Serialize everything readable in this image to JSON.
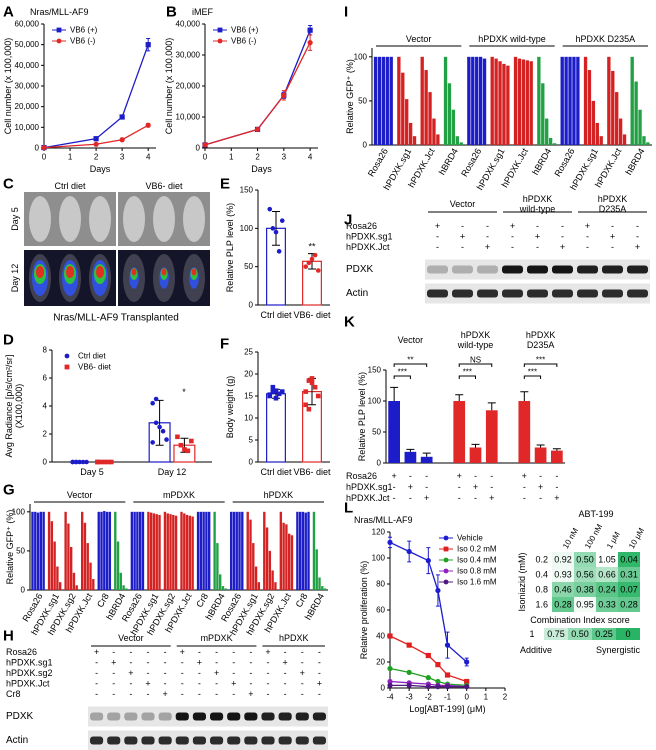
{
  "chart_data": [
    {
      "panel": "A",
      "type": "line",
      "title": "Nras/MLL-AF9",
      "xlabel": "Days",
      "ylabel": "Cell number (x 100,000)",
      "x": [
        0,
        2,
        3,
        4
      ],
      "xlim": [
        0,
        4.3
      ],
      "xticks": [
        0,
        1,
        2,
        3,
        4
      ],
      "ylim": [
        0,
        60000
      ],
      "yticks": [
        0,
        {
          "value": 10000,
          "label": "10,000"
        },
        {
          "value": 20000,
          "label": "20,000"
        },
        {
          "value": 30000,
          "label": "30,000"
        },
        {
          "value": 40000,
          "label": "40,000"
        },
        {
          "value": 50000,
          "label": "50,000"
        },
        {
          "value": 60000,
          "label": "60,000"
        }
      ],
      "legend": "upper left",
      "series": [
        {
          "name": "VB6 (+)",
          "color": "#1c1cc8",
          "marker": "square",
          "values": [
            200,
            4500,
            15000,
            50000
          ],
          "errors": [
            0,
            600,
            900,
            3000
          ]
        },
        {
          "name": "VB6 (-)",
          "color": "#e02828",
          "marker": "circle",
          "values": [
            200,
            1800,
            4000,
            11000
          ],
          "errors": [
            0,
            300,
            500,
            800
          ]
        }
      ]
    },
    {
      "panel": "B",
      "type": "line",
      "title": "iMEF",
      "xlabel": "Days",
      "ylabel": "Cell number (x 100,000)",
      "x": [
        0,
        2,
        3,
        4
      ],
      "xlim": [
        0,
        4.3
      ],
      "xticks": [
        0,
        1,
        2,
        3,
        4
      ],
      "ylim": [
        0,
        40000
      ],
      "yticks": [
        0,
        {
          "value": 10000,
          "label": "10,000"
        },
        {
          "value": 20000,
          "label": "20,000"
        },
        {
          "value": 30000,
          "label": "30,000"
        },
        {
          "value": 40000,
          "label": "40,000"
        }
      ],
      "legend": "upper left",
      "series": [
        {
          "name": "VB6 (+)",
          "color": "#1c1cc8",
          "marker": "square",
          "values": [
            1000,
            6000,
            17000,
            38000
          ],
          "errors": [
            0,
            500,
            1000,
            1500
          ]
        },
        {
          "name": "VB6 (-)",
          "color": "#e02828",
          "marker": "circle",
          "values": [
            1000,
            6000,
            17000,
            34000
          ],
          "errors": [
            0,
            500,
            1500,
            2500
          ]
        }
      ]
    },
    {
      "panel": "D",
      "type": "dot",
      "ylabel": "Avg Radiance [p/s/cm²/sr] (X100,000)",
      "categories": [
        "Day 5",
        "Day 12"
      ],
      "ylim": [
        0,
        8
      ],
      "yticks": [
        0,
        2,
        4,
        6,
        8
      ],
      "legend": "upper left",
      "annotation": "*",
      "series": [
        {
          "name": "Ctrl diet",
          "color": "#1c1cc8",
          "marker": "circle",
          "values": [
            0,
            2.8
          ],
          "errors": [
            0,
            1.6
          ],
          "points": [
            [
              0,
              0,
              0,
              0,
              0,
              0,
              0
            ],
            [
              4.2,
              2.8,
              2.5,
              2.2,
              1.6,
              1.4,
              4.5
            ]
          ]
        },
        {
          "name": "VB6- diet",
          "color": "#e02828",
          "marker": "square",
          "values": [
            0,
            1.2
          ],
          "errors": [
            0,
            0.5
          ],
          "points": [
            [
              0,
              0,
              0,
              0,
              0,
              0
            ],
            [
              1.8,
              1.2,
              0.9,
              0.8,
              1.5
            ]
          ]
        }
      ]
    },
    {
      "panel": "E",
      "type": "dot",
      "ylabel": "Relative PLP level (%)",
      "categories": [
        "Ctrl diet",
        "VB6- diet"
      ],
      "colors": [
        "#1c1cc8",
        "#e02828"
      ],
      "ylim": [
        0,
        150
      ],
      "yticks": [
        0,
        50,
        100,
        150
      ],
      "annotation": "**",
      "series": [
        {
          "marker": "circle",
          "values": [
            100,
            57
          ],
          "errors": [
            22,
            10
          ],
          "points": [
            [
              125,
              100,
              95,
              70,
              110
            ],
            [
              50,
              55,
              60,
              65,
              45
            ]
          ]
        }
      ]
    },
    {
      "panel": "F",
      "type": "dot",
      "ylabel": "Body weight (g)",
      "categories": [
        "Ctrl diet",
        "VB6- diet"
      ],
      "colors": [
        "#1c1cc8",
        "#e02828"
      ],
      "ylim": [
        0,
        25
      ],
      "yticks": [
        0,
        5,
        10,
        15,
        20,
        25
      ],
      "series": [
        {
          "marker": "square",
          "values": [
            15.5,
            16
          ],
          "errors": [
            1,
            3
          ],
          "points": [
            [
              15,
              16,
              14.5,
              15.5,
              16,
              15.3,
              17,
              16.2
            ],
            [
              13,
              18.5,
              19,
              17,
              15,
              16,
              12,
              18
            ]
          ]
        }
      ]
    },
    {
      "panel": "G",
      "type": "timecourse",
      "ylabel": "Relative GFP⁺ (%)",
      "groups": [
        "Vector",
        "mPDXK",
        "hPDXK"
      ],
      "categories": [
        "Rosa26",
        "hPDXK.sg1",
        "hPDXK.sg2",
        "hPDXK.Jct",
        "Cr8",
        "hBRD4"
      ],
      "colors": [
        "#1c1cc8",
        "#d42222",
        "#d42222",
        "#d42222",
        "#1c1cc8",
        "#22a044"
      ],
      "ylim": [
        0,
        110
      ],
      "yticks": [
        0,
        50,
        100
      ],
      "values": [
        [
          [
            100,
            100,
            99,
            100,
            100
          ],
          [
            100,
            88,
            62,
            30,
            10
          ],
          [
            100,
            85,
            55,
            22,
            6
          ],
          [
            100,
            86,
            60,
            35,
            14
          ],
          [
            100,
            100,
            101,
            100,
            100
          ],
          [
            100,
            62,
            22,
            6,
            2
          ]
        ],
        [
          [
            100,
            100,
            100,
            100,
            100
          ],
          [
            100,
            99,
            98,
            97,
            96
          ],
          [
            100,
            98,
            97,
            96,
            95
          ],
          [
            100,
            98,
            96,
            95,
            94
          ],
          [
            100,
            100,
            100,
            100,
            100
          ],
          [
            100,
            60,
            20,
            5,
            2
          ]
        ],
        [
          [
            100,
            100,
            100,
            100,
            100
          ],
          [
            100,
            90,
            60,
            30,
            10
          ],
          [
            100,
            80,
            50,
            25,
            10
          ],
          [
            100,
            86,
            84,
            72,
            70
          ],
          [
            100,
            100,
            100,
            99,
            100
          ],
          [
            100,
            52,
            16,
            5,
            2
          ]
        ]
      ]
    },
    {
      "panel": "I",
      "type": "timecourse",
      "ylabel": "Relative GFP⁺ (%)",
      "groups": [
        "Vector",
        "hPDXK wild-type",
        "hPDXK D235A"
      ],
      "categories": [
        "Rosa26",
        "hPDXK.sg1",
        "hPDXK.Jct",
        "hBRD4"
      ],
      "colors": [
        "#1c1cc8",
        "#d42222",
        "#d42222",
        "#22a044"
      ],
      "ylim": [
        0,
        110
      ],
      "yticks": [
        0,
        50,
        100
      ],
      "values": [
        [
          [
            100,
            100,
            100,
            100,
            100
          ],
          [
            100,
            82,
            52,
            25,
            10
          ],
          [
            100,
            85,
            60,
            30,
            12
          ],
          [
            100,
            70,
            40,
            10,
            3
          ]
        ],
        [
          [
            100,
            100,
            100,
            100,
            98
          ],
          [
            100,
            98,
            95,
            92,
            90
          ],
          [
            100,
            98,
            97,
            96,
            95
          ],
          [
            100,
            70,
            30,
            8,
            2
          ]
        ],
        [
          [
            100,
            100,
            100,
            100,
            100
          ],
          [
            100,
            85,
            50,
            25,
            10
          ],
          [
            100,
            84,
            60,
            30,
            12
          ],
          [
            100,
            72,
            40,
            10,
            3
          ]
        ]
      ]
    },
    {
      "panel": "K",
      "type": "bar",
      "ylabel": "Relative PLP level (%)",
      "groups": [
        "Vector",
        "hPDXK wild-type",
        "hPDXK D235A"
      ],
      "ylim": [
        0,
        150
      ],
      "yticks": [
        0,
        50,
        100,
        150
      ],
      "values": [
        100,
        18,
        10,
        100,
        25,
        85,
        100,
        25,
        20
      ],
      "errors": [
        22,
        4,
        6,
        10,
        5,
        12,
        15,
        4,
        3
      ],
      "colors": [
        "#1c1cc8",
        "#1c1cc8",
        "#1c1cc8",
        "#e02828",
        "#e02828",
        "#e02828",
        "#e02828",
        "#e02828",
        "#e02828"
      ],
      "significance": [
        "**",
        "***",
        "NS",
        "***",
        "***",
        "***"
      ],
      "matrix": {
        "rows": [
          "Rosa26",
          "hPDXK.sg1",
          "hPDXK.Jct"
        ],
        "cells": [
          [
            "+",
            "-",
            "-",
            "+",
            "-",
            "-",
            "+",
            "-",
            "-"
          ],
          [
            "-",
            "+",
            "-",
            "-",
            "+",
            "-",
            "-",
            "+",
            "-"
          ],
          [
            "-",
            "-",
            "+",
            "-",
            "-",
            "+",
            "-",
            "-",
            "+"
          ]
        ]
      }
    },
    {
      "panel": "L",
      "type": "line",
      "title": "Nras/MLL-AF9",
      "xlabel": "Log[ABT-199] (μM)",
      "ylabel": "Relative proliferation (%)",
      "x": [
        -4,
        -3,
        -2,
        -1.5,
        -1,
        0
      ],
      "xlim": [
        -4,
        2
      ],
      "xticks": [
        -4,
        -3,
        -2,
        -1,
        0,
        1,
        2
      ],
      "ylim": [
        0,
        120
      ],
      "yticks": [
        0,
        20,
        40,
        60,
        80,
        100,
        120
      ],
      "legend": "upper right",
      "series": [
        {
          "name": "Vehicle",
          "color": "#1c1cd0",
          "marker": "circle",
          "values": [
            112,
            105,
            98,
            75,
            33,
            20
          ],
          "errors": [
            4,
            8,
            10,
            12,
            10,
            3
          ]
        },
        {
          "name": "Iso 0.2 mM",
          "color": "#e02020",
          "marker": "square",
          "values": [
            40,
            33,
            25,
            18,
            10,
            5
          ]
        },
        {
          "name": "Iso 0.4 mM",
          "color": "#20a020",
          "marker": "circle",
          "values": [
            15,
            12,
            8,
            5,
            3,
            2
          ]
        },
        {
          "name": "Iso 0.8 mM",
          "color": "#9020c0",
          "marker": "circle",
          "values": [
            5,
            4,
            3,
            2,
            2,
            1
          ]
        },
        {
          "name": "Iso 1.6 mM",
          "color": "#501880",
          "marker": "circle",
          "values": [
            2,
            2,
            1,
            1,
            1,
            1
          ]
        }
      ]
    },
    {
      "type": "heatmap",
      "title": "ABT-199",
      "ylabel": "Isoniazid (mM)",
      "columns": [
        "10 nM",
        "100 nM",
        "1 μM",
        "10 μM"
      ],
      "rows": [
        0.2,
        0.4,
        0.8,
        1.6
      ],
      "values": [
        [
          0.92,
          0.5,
          1.05,
          0.04
        ],
        [
          0.93,
          0.56,
          0.66,
          0.31
        ],
        [
          0.46,
          0.38,
          0.24,
          0.07
        ],
        [
          0.28,
          0.95,
          0.33,
          0.28
        ]
      ],
      "value_labels": [
        [
          "0.92",
          "0.50",
          "1.05",
          "0.04"
        ],
        [
          "0.93",
          "0.56",
          "0.66",
          "0.31"
        ],
        [
          "0.46",
          "0.38",
          "0.24",
          "0.07"
        ],
        [
          "0.28",
          "0.95",
          "0.33",
          "0.28"
        ]
      ],
      "colorbar": {
        "title": "Combination Index score",
        "ticks": [
          1,
          0.75,
          {
            "value": 0.5,
            "label": "0.50"
          },
          0.25,
          0
        ],
        "labels": [
          "Additive",
          "Synergistic"
        ]
      }
    }
  ],
  "images": {
    "panel": "C",
    "columns": [
      "Ctrl diet",
      "VB6- diet"
    ],
    "rows": [
      "Day 5",
      "Day 12"
    ],
    "caption": "Nras/MLL-AF9 Transplanted"
  },
  "blots": [
    {
      "panel": "H",
      "groups": [
        "Vector",
        "mPDXK",
        "hPDXK"
      ],
      "rows": [
        "Rosa26",
        "hPDXK.sg1",
        "hPDXK.sg2",
        "hPDXK.Jct",
        "Cr8"
      ],
      "cells": [
        [
          "+",
          "-",
          "-",
          "-",
          "-",
          "+",
          "-",
          "-",
          "-",
          "-",
          "+",
          "-",
          "-",
          "-"
        ],
        [
          "-",
          "+",
          "-",
          "-",
          "-",
          "-",
          "+",
          "-",
          "-",
          "-",
          "-",
          "+",
          "-",
          "-"
        ],
        [
          "-",
          "-",
          "+",
          "-",
          "-",
          "-",
          "-",
          "+",
          "-",
          "-",
          "-",
          "-",
          "+",
          "-"
        ],
        [
          "-",
          "-",
          "-",
          "+",
          "-",
          "-",
          "-",
          "-",
          "+",
          "-",
          "-",
          "-",
          "-",
          "+"
        ],
        [
          "-",
          "-",
          "-",
          "-",
          "+",
          "-",
          "-",
          "-",
          "-",
          "+",
          "-",
          "-",
          "-",
          "-"
        ]
      ],
      "bands": [
        "PDXK",
        "Actin"
      ]
    },
    {
      "panel": "J",
      "groups": [
        "Vector",
        "hPDXK wild-type",
        "hPDXK D235A"
      ],
      "rows": [
        "Rosa26",
        "hPDXK.sg1",
        "hPDXK.Jct"
      ],
      "cells": [
        [
          "+",
          "-",
          "-",
          "+",
          "-",
          "-",
          "+",
          "-",
          "-"
        ],
        [
          "-",
          "+",
          "-",
          "-",
          "+",
          "-",
          "-",
          "+",
          "-"
        ],
        [
          "-",
          "-",
          "+",
          "-",
          "-",
          "+",
          "-",
          "-",
          "+"
        ]
      ],
      "bands": [
        "PDXK",
        "Actin"
      ]
    }
  ]
}
